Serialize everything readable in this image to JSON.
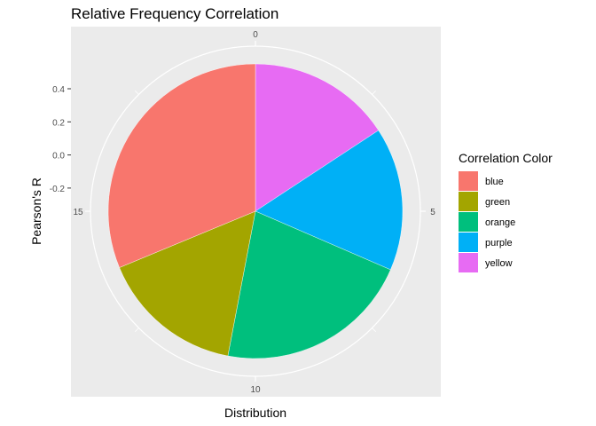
{
  "chart_data": {
    "type": "pie",
    "title": "Relative Frequency Correlation",
    "xlabel": "Distribution",
    "ylabel": "Pearson's R",
    "y_ticks": [
      "0.4",
      "0.2",
      "0.0",
      "-0.2"
    ],
    "theta_ticks": [
      "0",
      "5",
      "10",
      "15"
    ],
    "theta_max": 20,
    "legend": {
      "title": "Correlation Color",
      "position": "right"
    },
    "slices": [
      {
        "label": "yellow",
        "value": 3.15,
        "color": "#E76BF3"
      },
      {
        "label": "purple",
        "value": 3.15,
        "color": "#00B0F6"
      },
      {
        "label": "orange",
        "value": 4.3,
        "color": "#00BF7D"
      },
      {
        "label": "green",
        "value": 3.15,
        "color": "#A3A500"
      },
      {
        "label": "blue",
        "value": 6.25,
        "color": "#F8766D"
      }
    ],
    "legend_order": [
      "blue",
      "green",
      "orange",
      "purple",
      "yellow"
    ],
    "grid": true
  }
}
